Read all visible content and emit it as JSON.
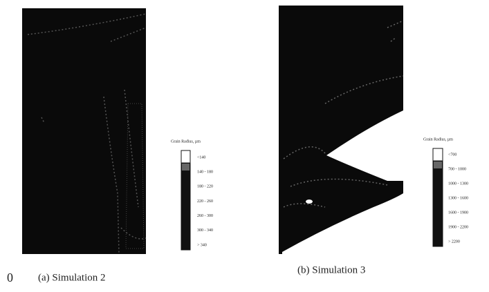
{
  "page_number": "0",
  "panels": [
    {
      "caption": "(a)   Simulation 2",
      "legend": {
        "title": "Grain Radius, µm",
        "labels": [
          "<140",
          "140 - 180",
          "180 - 220",
          "220 - 260",
          "260 - 300",
          "300 - 340",
          "> 340"
        ]
      }
    },
    {
      "caption": "(b)   Simulation 3",
      "legend": {
        "title": "Grain Radius, µm",
        "labels": [
          "<700",
          "700 - 1000",
          "1000 - 1300",
          "1300 - 1600",
          "1600 - 1900",
          "1900 - 2200",
          "> 2200"
        ]
      }
    }
  ]
}
